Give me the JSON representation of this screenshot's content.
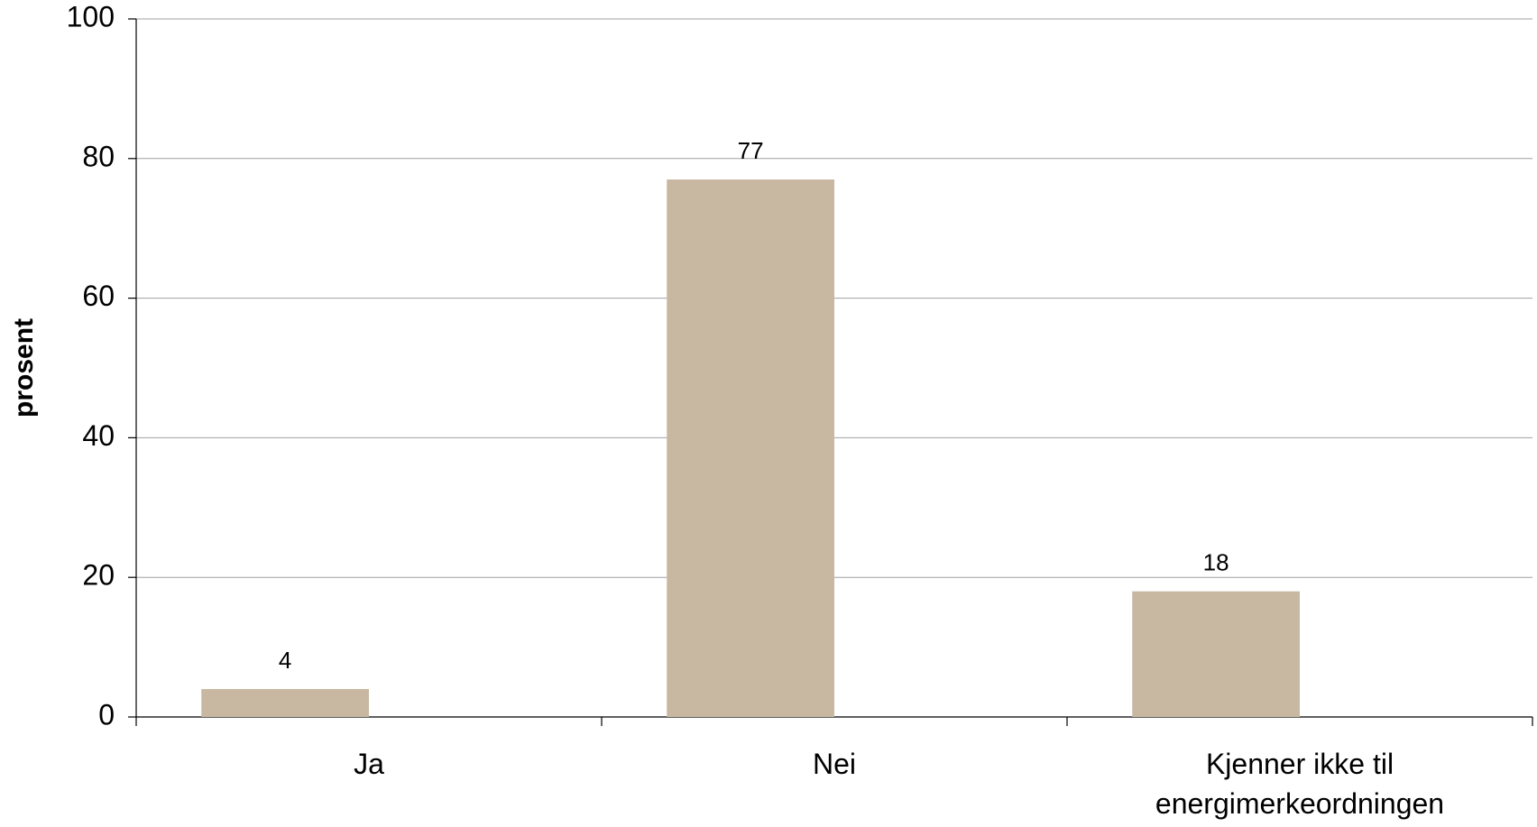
{
  "chart_data": {
    "type": "bar",
    "y_label": "prosent",
    "categories": [
      "Ja",
      "Nei",
      "Kjenner ikke til energimerkeordningen"
    ],
    "values": [
      4,
      77,
      18
    ],
    "color": "#c8b8a2",
    "ylim": [
      0,
      100
    ],
    "yticks": [
      0,
      20,
      40,
      60,
      80,
      100
    ],
    "grid": true
  }
}
